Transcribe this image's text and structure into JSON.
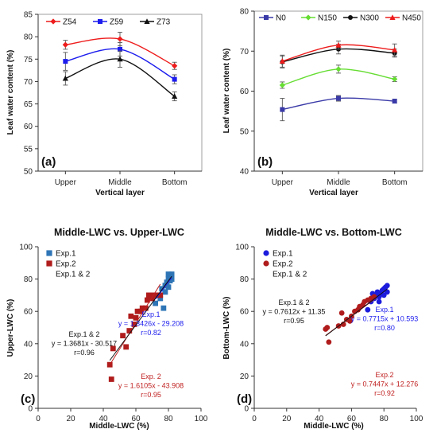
{
  "chart_data": [
    {
      "type": "line",
      "panel_label": "(a)",
      "categories": [
        "Upper",
        "Middle",
        "Bottom"
      ],
      "xlabel": "Vertical layer",
      "ylabel": "Leaf water content (%)",
      "ylim": [
        50,
        85
      ],
      "yticks": [
        50,
        55,
        60,
        65,
        70,
        75,
        80,
        85
      ],
      "legend": "top",
      "series": [
        {
          "name": "Z54",
          "color": "#ee1c1c",
          "marker": "diamond",
          "values": [
            78.2,
            79.5,
            73.5
          ],
          "errors": [
            1.0,
            1.5,
            0.8
          ]
        },
        {
          "name": "Z59",
          "color": "#1c1cee",
          "marker": "square",
          "values": [
            74.5,
            77.2,
            70.5
          ],
          "errors": [
            2.0,
            1.5,
            1.0
          ]
        },
        {
          "name": "Z73",
          "color": "#111111",
          "marker": "triangle",
          "values": [
            70.7,
            75.0,
            66.7
          ],
          "errors": [
            1.5,
            1.8,
            1.0
          ]
        }
      ]
    },
    {
      "type": "line",
      "panel_label": "(b)",
      "categories": [
        "Upper",
        "Middle",
        "Bottom"
      ],
      "xlabel": "Vertical layer",
      "ylabel": "Leaf water content (%)",
      "ylim": [
        40,
        80
      ],
      "yticks": [
        40,
        50,
        60,
        70,
        80
      ],
      "legend": "top",
      "series": [
        {
          "name": "N0",
          "color": "#3a3aa8",
          "marker": "square",
          "values": [
            55.4,
            58.2,
            57.5
          ],
          "errors": [
            2.8,
            0.7,
            0.5
          ]
        },
        {
          "name": "N150",
          "color": "#66dd33",
          "marker": "diamond",
          "values": [
            61.5,
            65.5,
            63.0
          ],
          "errors": [
            0.8,
            1.0,
            0.6
          ]
        },
        {
          "name": "N300",
          "color": "#111111",
          "marker": "circle",
          "values": [
            67.3,
            70.5,
            69.5
          ],
          "errors": [
            1.5,
            1.2,
            1.0
          ]
        },
        {
          "name": "N450",
          "color": "#ee1c1c",
          "marker": "triangle",
          "values": [
            67.5,
            71.5,
            70.3
          ],
          "errors": [
            1.5,
            1.0,
            1.5
          ]
        }
      ]
    },
    {
      "type": "scatter",
      "panel_label": "(c)",
      "title": "Middle-LWC vs. Upper-LWC",
      "xlabel": "Middle-LWC (%)",
      "ylabel": "Upper-LWC (%)",
      "xlim": [
        0,
        100
      ],
      "ylim": [
        0,
        100
      ],
      "xticks": [
        0,
        20,
        40,
        60,
        80,
        100
      ],
      "yticks": [
        0,
        20,
        40,
        60,
        80,
        100
      ],
      "legend": "top-left",
      "legend_extra": "Exp.1 & 2",
      "series": [
        {
          "name": "Exp.1",
          "color": "#2e75b6",
          "marker": "square",
          "points": [
            [
              72,
              65
            ],
            [
              75,
              68
            ],
            [
              76,
              74
            ],
            [
              77,
              62
            ],
            [
              78,
              72
            ],
            [
              78,
              76
            ],
            [
              79,
              78
            ],
            [
              80,
              80
            ],
            [
              80,
              75
            ],
            [
              81,
              82
            ],
            [
              82,
              83
            ],
            [
              81,
              79
            ],
            [
              82,
              80
            ],
            [
              79,
              76
            ],
            [
              80,
              83
            ]
          ]
        },
        {
          "name": "Exp.2",
          "color": "#b01c1c",
          "marker": "square",
          "points": [
            [
              44,
              27
            ],
            [
              45,
              18
            ],
            [
              46,
              37
            ],
            [
              52,
              45
            ],
            [
              54,
              38
            ],
            [
              56,
              48
            ],
            [
              57,
              57
            ],
            [
              59,
              52
            ],
            [
              60,
              56
            ],
            [
              61,
              60
            ],
            [
              63,
              60
            ],
            [
              64,
              62
            ],
            [
              66,
              62
            ],
            [
              67,
              67
            ],
            [
              68,
              70
            ],
            [
              69,
              70
            ],
            [
              70,
              68
            ],
            [
              72,
              70
            ],
            [
              75,
              70
            ]
          ]
        }
      ],
      "fits": [
        {
          "label": "Exp.1",
          "eq": "y = 1.3426x - 29.208",
          "r": "r=0.82",
          "slope": 1.3426,
          "intercept": -29.208,
          "x_range": [
            72,
            82
          ],
          "color": "#1c1cee"
        },
        {
          "label": "Exp. 2",
          "eq": "y = 1.6105x - 43.908",
          "r": "r=0.95",
          "slope": 1.6105,
          "intercept": -43.908,
          "x_range": [
            44,
            75
          ],
          "color": "#c02020"
        },
        {
          "label": "Exp.1 & 2",
          "eq": "y = 1.3681x - 30.517",
          "r": "r=0.96",
          "slope": 1.3681,
          "intercept": -30.517,
          "x_range": [
            44,
            82
          ],
          "color": "#111111"
        }
      ]
    },
    {
      "type": "scatter",
      "panel_label": "(d)",
      "title": "Middle-LWC vs. Bottom-LWC",
      "xlabel": "Middle-LWC (%)",
      "ylabel": "Bottom-LWC (%)",
      "xlim": [
        0,
        100
      ],
      "ylim": [
        0,
        100
      ],
      "xticks": [
        0,
        20,
        40,
        60,
        80,
        100
      ],
      "yticks": [
        0,
        20,
        40,
        60,
        80,
        100
      ],
      "legend": "top-left",
      "legend_extra": "Exp.1 & 2",
      "series": [
        {
          "name": "Exp.1",
          "color": "#1c1cdd",
          "marker": "circle",
          "points": [
            [
              70,
              61
            ],
            [
              72,
              66
            ],
            [
              73,
              71
            ],
            [
              74,
              68
            ],
            [
              75,
              70
            ],
            [
              76,
              72
            ],
            [
              77,
              66
            ],
            [
              77,
              69
            ],
            [
              78,
              71
            ],
            [
              79,
              73
            ],
            [
              80,
              74
            ],
            [
              81,
              75
            ],
            [
              82,
              76
            ],
            [
              80,
              70
            ],
            [
              82,
              72
            ]
          ]
        },
        {
          "name": "Exp.2",
          "color": "#b01c1c",
          "marker": "circle",
          "points": [
            [
              44,
              49
            ],
            [
              45,
              50
            ],
            [
              46,
              41
            ],
            [
              52,
              51
            ],
            [
              54,
              59
            ],
            [
              55,
              52
            ],
            [
              57,
              55
            ],
            [
              59,
              54
            ],
            [
              60,
              57
            ],
            [
              62,
              60
            ],
            [
              64,
              61
            ],
            [
              65,
              63
            ],
            [
              67,
              64
            ],
            [
              68,
              66
            ],
            [
              70,
              67
            ],
            [
              72,
              68
            ],
            [
              74,
              69
            ]
          ]
        }
      ],
      "fits": [
        {
          "label": "Exp.1",
          "eq": "y = 0.7715x + 10.593",
          "r": "r=0.80",
          "slope": 0.7715,
          "intercept": 10.593,
          "x_range": [
            70,
            82
          ],
          "color": "#1c1cee"
        },
        {
          "label": "Exp.2",
          "eq": "y = 0.7447x + 12.276",
          "r": "r=0.92",
          "slope": 0.7447,
          "intercept": 12.276,
          "x_range": [
            44,
            74
          ],
          "color": "#c02020"
        },
        {
          "label": "Exp.1 & 2",
          "eq": "y = 0.7612x + 11.35",
          "r": "r=0.95",
          "slope": 0.7612,
          "intercept": 11.35,
          "x_range": [
            44,
            82
          ],
          "color": "#111111"
        }
      ]
    }
  ]
}
